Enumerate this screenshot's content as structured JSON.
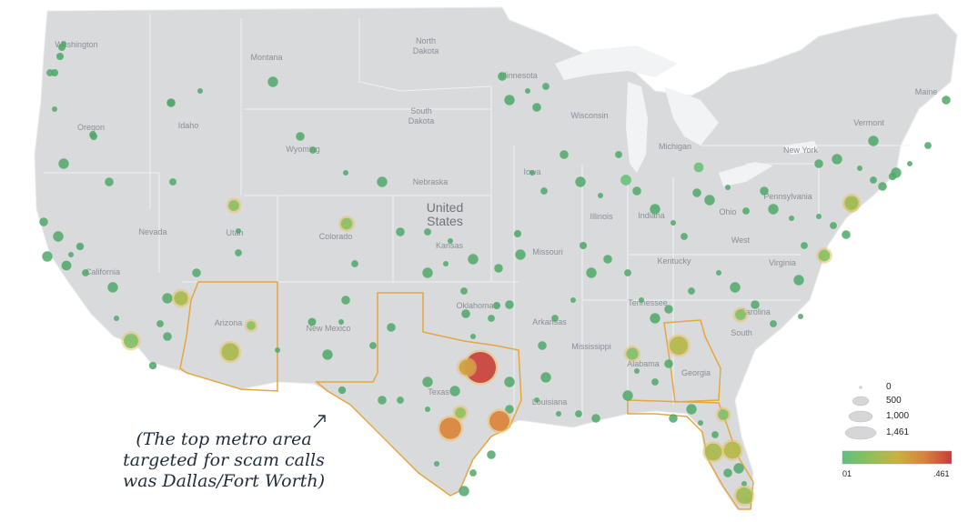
{
  "map": {
    "country_label_line1": "United",
    "country_label_line2": "States",
    "state_labels": [
      {
        "id": "washington",
        "text": "Washington"
      },
      {
        "id": "montana",
        "text": "Montana"
      },
      {
        "id": "north-dakota-1",
        "text": "North"
      },
      {
        "id": "north-dakota-2",
        "text": "Dakota"
      },
      {
        "id": "minnesota",
        "text": "Minnesota"
      },
      {
        "id": "maine",
        "text": "Maine"
      },
      {
        "id": "oregon",
        "text": "Oregon"
      },
      {
        "id": "idaho",
        "text": "Idaho"
      },
      {
        "id": "south-dakota-1",
        "text": "South"
      },
      {
        "id": "south-dakota-2",
        "text": "Dakota"
      },
      {
        "id": "wisconsin",
        "text": "Wisconsin"
      },
      {
        "id": "vermont",
        "text": "Vermont"
      },
      {
        "id": "wyoming",
        "text": "Wyoming"
      },
      {
        "id": "michigan",
        "text": "Michigan"
      },
      {
        "id": "new-york",
        "text": "New York"
      },
      {
        "id": "iowa",
        "text": "Iowa"
      },
      {
        "id": "nebraska",
        "text": "Nebraska"
      },
      {
        "id": "pennsylvania",
        "text": "Pennsylvania"
      },
      {
        "id": "nevada",
        "text": "Nevada"
      },
      {
        "id": "utah",
        "text": "Utah"
      },
      {
        "id": "colorado",
        "text": "Colorado"
      },
      {
        "id": "illinois",
        "text": "Illinois"
      },
      {
        "id": "indiana",
        "text": "Indiana"
      },
      {
        "id": "ohio",
        "text": "Ohio"
      },
      {
        "id": "california",
        "text": "California"
      },
      {
        "id": "kansas",
        "text": "Kansas"
      },
      {
        "id": "missouri",
        "text": "Missouri"
      },
      {
        "id": "west-virginia",
        "text": "West"
      },
      {
        "id": "kentucky",
        "text": "Kentucky"
      },
      {
        "id": "virginia",
        "text": "Virginia"
      },
      {
        "id": "oklahoma",
        "text": "Oklahoma"
      },
      {
        "id": "tennessee",
        "text": "Tennessee"
      },
      {
        "id": "arizona",
        "text": "Arizona"
      },
      {
        "id": "new-mexico",
        "text": "New Mexico"
      },
      {
        "id": "arkansas",
        "text": "Arkansas"
      },
      {
        "id": "north-carolina",
        "text": "Carolina"
      },
      {
        "id": "south-carolina",
        "text": "South"
      },
      {
        "id": "mississippi",
        "text": "Mississippi"
      },
      {
        "id": "alabama",
        "text": "Alabama"
      },
      {
        "id": "georgia",
        "text": "Georgia"
      },
      {
        "id": "texas",
        "text": "Texas"
      },
      {
        "id": "louisiana",
        "text": "Louisiana"
      }
    ]
  },
  "annotation": {
    "line1": "(The top metro area",
    "line2": "targeted for scam calls",
    "line3": "was Dallas/Fort Worth)"
  },
  "legend": {
    "size_labels": [
      "0",
      "500",
      "1,000",
      "1,461"
    ],
    "color_min_label": "01",
    "color_max_label": ".461",
    "color_stops": [
      "#5fbf7f",
      "#8fbf5a",
      "#c9b23f",
      "#d9823a",
      "#c63b3b"
    ]
  },
  "highlight_color": "#e6a640",
  "land_color": "#d9dadc",
  "water_color": "#ffffff",
  "points": [
    {
      "id": "seattle",
      "size": 0.05,
      "color": 0.0
    },
    {
      "id": "tacoma",
      "size": 0.04,
      "color": 0.0
    },
    {
      "id": "spokane",
      "size": 0.03,
      "color": 0.0
    },
    {
      "id": "portland",
      "size": 0.05,
      "color": 0.0
    },
    {
      "id": "boise",
      "size": 0.03,
      "color": 0.0
    },
    {
      "id": "salt-lake",
      "size": 0.12,
      "color": 0.2
    },
    {
      "id": "denver",
      "size": 0.14,
      "color": 0.2
    },
    {
      "id": "phoenix",
      "size": 0.32,
      "color": 0.35
    },
    {
      "id": "tucson",
      "size": 0.08,
      "color": 0.2
    },
    {
      "id": "los-angeles",
      "size": 0.22,
      "color": 0.15
    },
    {
      "id": "san-diego",
      "size": 0.06,
      "color": 0.0
    },
    {
      "id": "sf-bay",
      "size": 0.1,
      "color": 0.0
    },
    {
      "id": "sacramento",
      "size": 0.06,
      "color": 0.0
    },
    {
      "id": "las-vegas",
      "size": 0.2,
      "color": 0.35
    },
    {
      "id": "albuquerque",
      "size": 0.07,
      "color": 0.0
    },
    {
      "id": "el-paso",
      "size": 0.06,
      "color": 0.0
    },
    {
      "id": "dallas",
      "size": 1.0,
      "color": 1.0
    },
    {
      "id": "fort-worth",
      "size": 0.25,
      "color": 0.6
    },
    {
      "id": "houston",
      "size": 0.42,
      "color": 0.75
    },
    {
      "id": "san-antonio",
      "size": 0.48,
      "color": 0.75
    },
    {
      "id": "austin",
      "size": 0.12,
      "color": 0.25
    },
    {
      "id": "okc",
      "size": 0.08,
      "color": 0.0
    },
    {
      "id": "tulsa",
      "size": 0.05,
      "color": 0.0
    },
    {
      "id": "kansas-city",
      "size": 0.05,
      "color": 0.0
    },
    {
      "id": "st-louis",
      "size": 0.05,
      "color": 0.0
    },
    {
      "id": "minneapolis",
      "size": 0.08,
      "color": 0.0
    },
    {
      "id": "chicago",
      "size": 0.12,
      "color": 0.05
    },
    {
      "id": "detroit",
      "size": 0.1,
      "color": 0.05
    },
    {
      "id": "atlanta",
      "size": 0.35,
      "color": 0.4
    },
    {
      "id": "birmingham",
      "size": 0.15,
      "color": 0.15
    },
    {
      "id": "charlotte",
      "size": 0.12,
      "color": 0.15
    },
    {
      "id": "orlando",
      "size": 0.3,
      "color": 0.4
    },
    {
      "id": "tampa",
      "size": 0.3,
      "color": 0.35
    },
    {
      "id": "miami",
      "size": 0.28,
      "color": 0.3
    },
    {
      "id": "jacksonville",
      "size": 0.12,
      "color": 0.15
    },
    {
      "id": "washington-dc",
      "size": 0.14,
      "color": 0.2
    },
    {
      "id": "philadelphia",
      "size": 0.14,
      "color": 0.2
    },
    {
      "id": "new-york",
      "size": 0.2,
      "color": 0.3
    },
    {
      "id": "boston",
      "size": 0.06,
      "color": 0.0
    }
  ]
}
